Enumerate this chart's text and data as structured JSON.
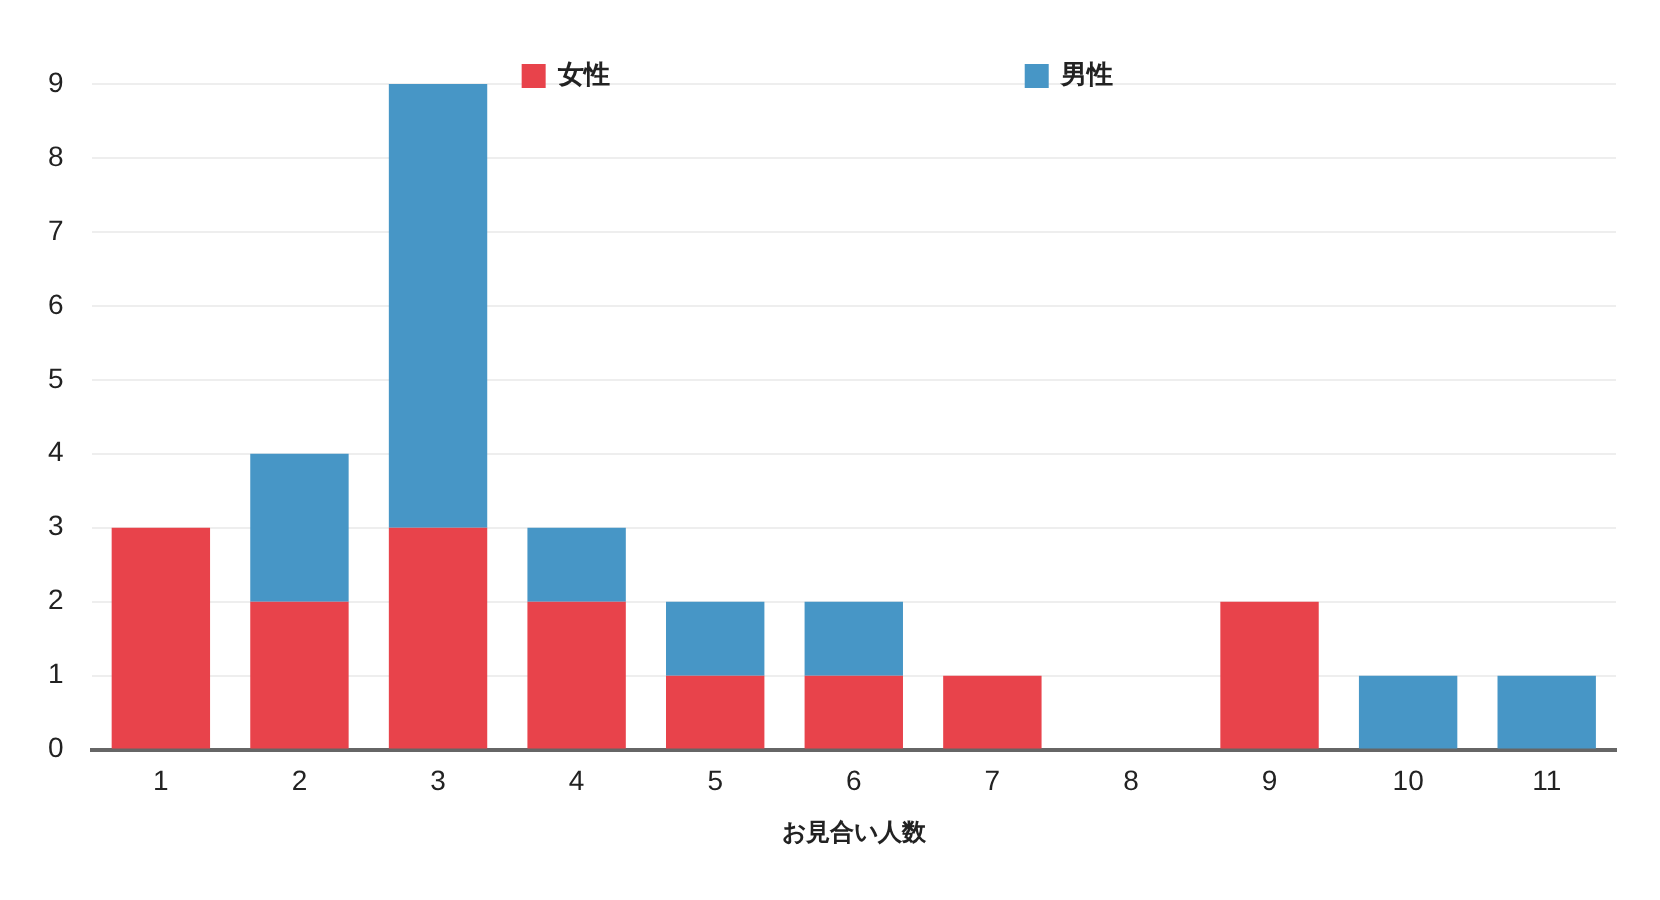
{
  "chart_data": {
    "type": "bar",
    "stacked": true,
    "xlabel": "お見合い人数",
    "categories": [
      "1",
      "2",
      "3",
      "4",
      "5",
      "6",
      "7",
      "8",
      "9",
      "10",
      "11"
    ],
    "series": [
      {
        "name": "女性",
        "color": "#e8434b",
        "values": [
          3,
          2,
          3,
          2,
          1,
          1,
          1,
          0,
          2,
          0,
          0
        ]
      },
      {
        "name": "男性",
        "color": "#4796c6",
        "values": [
          0,
          2,
          6,
          1,
          1,
          1,
          0,
          0,
          0,
          1,
          1
        ]
      }
    ],
    "ylim": [
      0,
      9
    ],
    "yticks": [
      0,
      1,
      2,
      3,
      4,
      5,
      6,
      7,
      8,
      9
    ],
    "grid": "y",
    "legend": "top"
  }
}
